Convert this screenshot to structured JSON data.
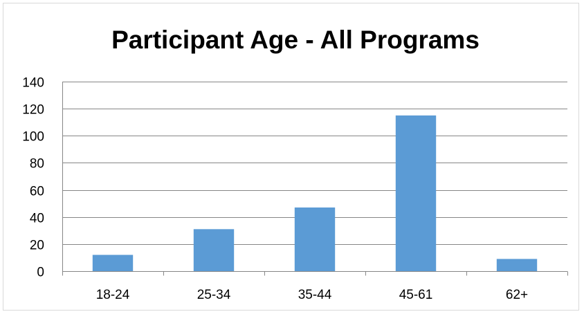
{
  "chart_data": {
    "type": "bar",
    "title": "Participant Age - All Programs",
    "xlabel": "",
    "ylabel": "",
    "categories": [
      "18-24",
      "25-34",
      "35-44",
      "45-61",
      "62+"
    ],
    "values": [
      12,
      31,
      47,
      115,
      9
    ],
    "ylim": [
      0,
      140
    ],
    "yticks": [
      0,
      20,
      40,
      60,
      80,
      100,
      120,
      140
    ],
    "grid": true,
    "legend": "none",
    "bar_color": "#5b9bd5",
    "grid_color": "#868686"
  }
}
